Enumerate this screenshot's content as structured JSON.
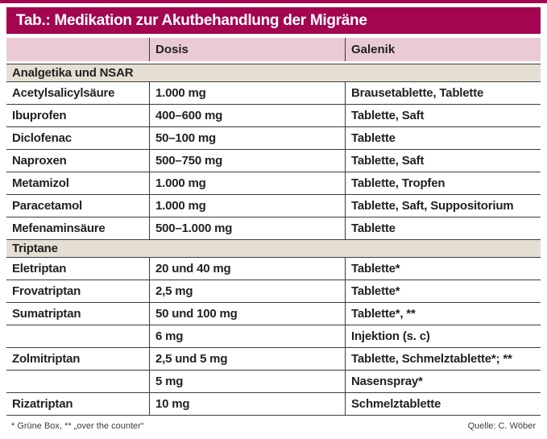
{
  "title": "Tab.: Medikation zur Akutbehandlung der Migräne",
  "columns": {
    "drug": "",
    "dosis": "Dosis",
    "galenik": "Galenik"
  },
  "sections": [
    {
      "label": "Analgetika und NSAR",
      "rows": [
        [
          "Acetylsalicylsäure",
          "1.000 mg",
          "Brausetablette, Tablette"
        ],
        [
          "Ibuprofen",
          "400–600 mg",
          "Tablette, Saft"
        ],
        [
          "Diclofenac",
          "50–100 mg",
          "Tablette"
        ],
        [
          "Naproxen",
          "500–750 mg",
          "Tablette, Saft"
        ],
        [
          "Metamizol",
          "1.000 mg",
          "Tablette, Tropfen"
        ],
        [
          "Paracetamol",
          "1.000 mg",
          "Tablette, Saft, Suppositorium"
        ],
        [
          "Mefenaminsäure",
          "500–1.000 mg",
          "Tablette"
        ]
      ]
    },
    {
      "label": "Triptane",
      "rows": [
        [
          "Eletriptan",
          "20 und 40 mg",
          "Tablette*"
        ],
        [
          "Frovatriptan",
          "2,5 mg",
          "Tablette*"
        ],
        [
          "Sumatriptan",
          "50 und 100 mg",
          "Tablette*, **"
        ],
        [
          "",
          "6 mg",
          "Injektion (s. c)"
        ],
        [
          "Zolmitriptan",
          "2,5 und 5 mg",
          "Tablette, Schmelztablette*; **"
        ],
        [
          "",
          "5 mg",
          "Nasenspray*"
        ],
        [
          "Rizatriptan",
          "10 mg",
          "Schmelztablette"
        ]
      ]
    }
  ],
  "footer": {
    "left": "* Grüne Box, ** „over the counter“",
    "right": "Quelle: C. Wöber"
  },
  "colors": {
    "accent": "#a30551",
    "header_pink": "#eacbd5",
    "section_beige": "#e5dfd3",
    "border": "#3b3b3d",
    "text": "#242122"
  }
}
